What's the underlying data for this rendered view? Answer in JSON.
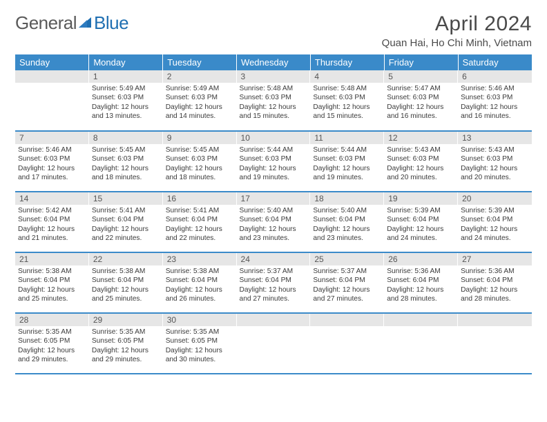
{
  "brand": {
    "part1": "General",
    "part2": "Blue"
  },
  "title": "April 2024",
  "location": "Quan Hai, Ho Chi Minh, Vietnam",
  "colors": {
    "header_bg": "#3a8ac9",
    "header_text": "#ffffff",
    "daynum_bg": "#e6e6e6",
    "row_border": "#3a8ac9",
    "logo_gray": "#5a5a5a",
    "logo_blue": "#1f6fb2"
  },
  "weekdays": [
    "Sunday",
    "Monday",
    "Tuesday",
    "Wednesday",
    "Thursday",
    "Friday",
    "Saturday"
  ],
  "weeks": [
    [
      null,
      {
        "n": "1",
        "sr": "Sunrise: 5:49 AM",
        "ss": "Sunset: 6:03 PM",
        "d1": "Daylight: 12 hours",
        "d2": "and 13 minutes."
      },
      {
        "n": "2",
        "sr": "Sunrise: 5:49 AM",
        "ss": "Sunset: 6:03 PM",
        "d1": "Daylight: 12 hours",
        "d2": "and 14 minutes."
      },
      {
        "n": "3",
        "sr": "Sunrise: 5:48 AM",
        "ss": "Sunset: 6:03 PM",
        "d1": "Daylight: 12 hours",
        "d2": "and 15 minutes."
      },
      {
        "n": "4",
        "sr": "Sunrise: 5:48 AM",
        "ss": "Sunset: 6:03 PM",
        "d1": "Daylight: 12 hours",
        "d2": "and 15 minutes."
      },
      {
        "n": "5",
        "sr": "Sunrise: 5:47 AM",
        "ss": "Sunset: 6:03 PM",
        "d1": "Daylight: 12 hours",
        "d2": "and 16 minutes."
      },
      {
        "n": "6",
        "sr": "Sunrise: 5:46 AM",
        "ss": "Sunset: 6:03 PM",
        "d1": "Daylight: 12 hours",
        "d2": "and 16 minutes."
      }
    ],
    [
      {
        "n": "7",
        "sr": "Sunrise: 5:46 AM",
        "ss": "Sunset: 6:03 PM",
        "d1": "Daylight: 12 hours",
        "d2": "and 17 minutes."
      },
      {
        "n": "8",
        "sr": "Sunrise: 5:45 AM",
        "ss": "Sunset: 6:03 PM",
        "d1": "Daylight: 12 hours",
        "d2": "and 18 minutes."
      },
      {
        "n": "9",
        "sr": "Sunrise: 5:45 AM",
        "ss": "Sunset: 6:03 PM",
        "d1": "Daylight: 12 hours",
        "d2": "and 18 minutes."
      },
      {
        "n": "10",
        "sr": "Sunrise: 5:44 AM",
        "ss": "Sunset: 6:03 PM",
        "d1": "Daylight: 12 hours",
        "d2": "and 19 minutes."
      },
      {
        "n": "11",
        "sr": "Sunrise: 5:44 AM",
        "ss": "Sunset: 6:03 PM",
        "d1": "Daylight: 12 hours",
        "d2": "and 19 minutes."
      },
      {
        "n": "12",
        "sr": "Sunrise: 5:43 AM",
        "ss": "Sunset: 6:03 PM",
        "d1": "Daylight: 12 hours",
        "d2": "and 20 minutes."
      },
      {
        "n": "13",
        "sr": "Sunrise: 5:43 AM",
        "ss": "Sunset: 6:03 PM",
        "d1": "Daylight: 12 hours",
        "d2": "and 20 minutes."
      }
    ],
    [
      {
        "n": "14",
        "sr": "Sunrise: 5:42 AM",
        "ss": "Sunset: 6:04 PM",
        "d1": "Daylight: 12 hours",
        "d2": "and 21 minutes."
      },
      {
        "n": "15",
        "sr": "Sunrise: 5:41 AM",
        "ss": "Sunset: 6:04 PM",
        "d1": "Daylight: 12 hours",
        "d2": "and 22 minutes."
      },
      {
        "n": "16",
        "sr": "Sunrise: 5:41 AM",
        "ss": "Sunset: 6:04 PM",
        "d1": "Daylight: 12 hours",
        "d2": "and 22 minutes."
      },
      {
        "n": "17",
        "sr": "Sunrise: 5:40 AM",
        "ss": "Sunset: 6:04 PM",
        "d1": "Daylight: 12 hours",
        "d2": "and 23 minutes."
      },
      {
        "n": "18",
        "sr": "Sunrise: 5:40 AM",
        "ss": "Sunset: 6:04 PM",
        "d1": "Daylight: 12 hours",
        "d2": "and 23 minutes."
      },
      {
        "n": "19",
        "sr": "Sunrise: 5:39 AM",
        "ss": "Sunset: 6:04 PM",
        "d1": "Daylight: 12 hours",
        "d2": "and 24 minutes."
      },
      {
        "n": "20",
        "sr": "Sunrise: 5:39 AM",
        "ss": "Sunset: 6:04 PM",
        "d1": "Daylight: 12 hours",
        "d2": "and 24 minutes."
      }
    ],
    [
      {
        "n": "21",
        "sr": "Sunrise: 5:38 AM",
        "ss": "Sunset: 6:04 PM",
        "d1": "Daylight: 12 hours",
        "d2": "and 25 minutes."
      },
      {
        "n": "22",
        "sr": "Sunrise: 5:38 AM",
        "ss": "Sunset: 6:04 PM",
        "d1": "Daylight: 12 hours",
        "d2": "and 25 minutes."
      },
      {
        "n": "23",
        "sr": "Sunrise: 5:38 AM",
        "ss": "Sunset: 6:04 PM",
        "d1": "Daylight: 12 hours",
        "d2": "and 26 minutes."
      },
      {
        "n": "24",
        "sr": "Sunrise: 5:37 AM",
        "ss": "Sunset: 6:04 PM",
        "d1": "Daylight: 12 hours",
        "d2": "and 27 minutes."
      },
      {
        "n": "25",
        "sr": "Sunrise: 5:37 AM",
        "ss": "Sunset: 6:04 PM",
        "d1": "Daylight: 12 hours",
        "d2": "and 27 minutes."
      },
      {
        "n": "26",
        "sr": "Sunrise: 5:36 AM",
        "ss": "Sunset: 6:04 PM",
        "d1": "Daylight: 12 hours",
        "d2": "and 28 minutes."
      },
      {
        "n": "27",
        "sr": "Sunrise: 5:36 AM",
        "ss": "Sunset: 6:04 PM",
        "d1": "Daylight: 12 hours",
        "d2": "and 28 minutes."
      }
    ],
    [
      {
        "n": "28",
        "sr": "Sunrise: 5:35 AM",
        "ss": "Sunset: 6:05 PM",
        "d1": "Daylight: 12 hours",
        "d2": "and 29 minutes."
      },
      {
        "n": "29",
        "sr": "Sunrise: 5:35 AM",
        "ss": "Sunset: 6:05 PM",
        "d1": "Daylight: 12 hours",
        "d2": "and 29 minutes."
      },
      {
        "n": "30",
        "sr": "Sunrise: 5:35 AM",
        "ss": "Sunset: 6:05 PM",
        "d1": "Daylight: 12 hours",
        "d2": "and 30 minutes."
      },
      null,
      null,
      null,
      null
    ]
  ]
}
